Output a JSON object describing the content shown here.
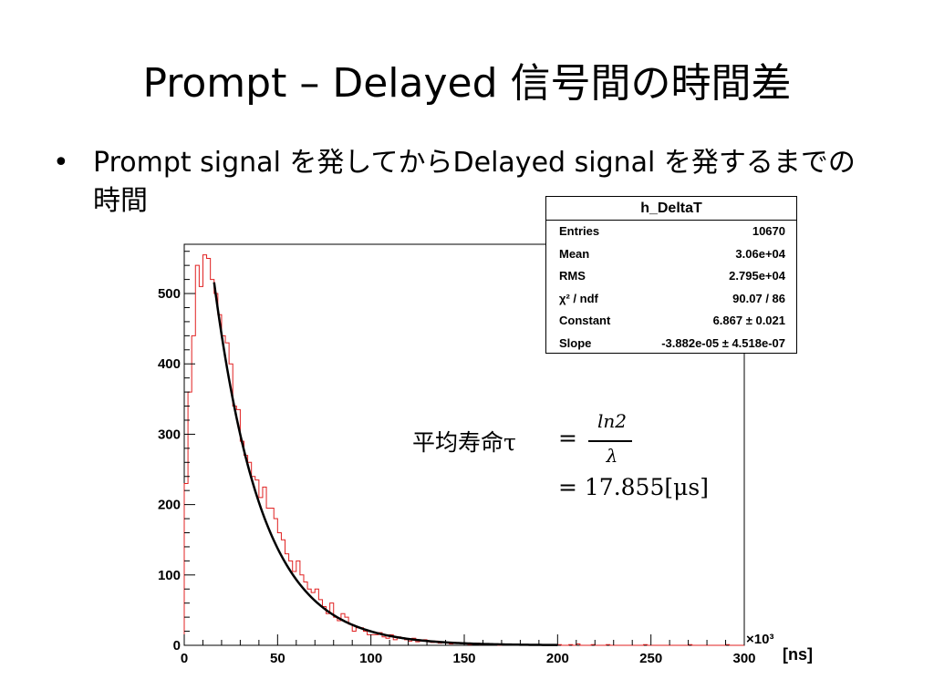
{
  "slide": {
    "title": "Prompt – Delayed 信号間の時間差",
    "bullet_marker": "•",
    "bullet_text": "Prompt signal を発してからDelayed signal を発するまでの時間"
  },
  "stats_box": {
    "title": "h_DeltaT",
    "rows": [
      {
        "key": "Entries",
        "value": "10670"
      },
      {
        "key": "Mean",
        "value": "3.06e+04"
      },
      {
        "key": "RMS",
        "value": "2.795e+04"
      },
      {
        "key": "χ² / ndf",
        "value": "90.07 / 86"
      },
      {
        "key": "Constant",
        "value": "6.867 ± 0.021"
      },
      {
        "key": "Slope",
        "value": "-3.882e-05 ± 4.518e-07"
      }
    ]
  },
  "formula": {
    "lhs": "平均寿命τ",
    "eq1": "=",
    "numerator": "ln2",
    "denominator": "λ",
    "eq2": "= 17.855[μs]"
  },
  "chart_data": {
    "type": "histogram",
    "xlim": [
      0,
      300
    ],
    "ylim": [
      0,
      570
    ],
    "x_multiplier": "×10³",
    "x_unit": "[ns]",
    "x_ticks": [
      0,
      50,
      100,
      150,
      200,
      250,
      300
    ],
    "y_ticks": [
      0,
      100,
      200,
      300,
      400,
      500
    ],
    "bin_width": 2,
    "series": [
      {
        "color": "#e02020",
        "x": [
          0,
          2,
          4,
          6,
          8,
          10,
          12,
          14,
          16,
          18,
          20,
          22,
          24,
          26,
          28,
          30,
          32,
          34,
          36,
          38,
          40,
          42,
          44,
          46,
          48,
          50,
          52,
          54,
          56,
          58,
          60,
          62,
          64,
          66,
          68,
          70,
          72,
          74,
          76,
          78,
          80,
          82,
          84,
          86,
          88,
          90,
          92,
          94,
          96,
          98,
          100,
          102,
          104,
          106,
          108,
          110,
          112,
          114,
          116,
          118,
          120,
          122,
          124,
          126,
          128,
          130,
          132,
          134,
          136,
          138,
          140,
          142,
          144,
          146,
          148,
          150,
          152,
          154,
          156,
          158,
          160,
          162,
          164,
          166,
          168,
          170,
          172,
          174,
          176,
          178,
          180,
          182,
          184,
          186,
          188,
          190,
          192,
          194,
          196,
          198,
          200,
          202,
          204,
          206,
          208,
          210,
          212,
          214,
          216,
          218,
          220,
          222,
          224,
          226,
          228,
          230,
          232,
          234,
          236,
          238,
          240,
          242,
          244,
          246,
          248,
          250,
          252,
          254,
          256,
          258,
          260,
          262,
          264,
          266,
          268,
          270,
          272,
          274,
          276,
          278,
          280,
          282,
          284,
          286,
          288,
          290,
          292,
          294,
          296,
          298
        ],
        "values": [
          230,
          360,
          440,
          540,
          510,
          555,
          550,
          520,
          500,
          470,
          440,
          430,
          400,
          340,
          335,
          290,
          270,
          260,
          240,
          235,
          210,
          225,
          195,
          195,
          180,
          160,
          150,
          130,
          120,
          105,
          120,
          100,
          90,
          80,
          75,
          80,
          65,
          55,
          45,
          60,
          40,
          35,
          45,
          40,
          30,
          20,
          25,
          25,
          20,
          15,
          15,
          15,
          18,
          12,
          10,
          15,
          8,
          12,
          10,
          8,
          6,
          10,
          5,
          6,
          8,
          5,
          4,
          6,
          3,
          4,
          3,
          2,
          4,
          3,
          2,
          2,
          1,
          2,
          3,
          1,
          1,
          2,
          1,
          1,
          0,
          1,
          1,
          2,
          1,
          0,
          1,
          0,
          1,
          1,
          0,
          0,
          1,
          0,
          0,
          1,
          1,
          0,
          0,
          1,
          0,
          2,
          0,
          0,
          0,
          1,
          0,
          0,
          0,
          1,
          0,
          0,
          0,
          0,
          0,
          0,
          0,
          0,
          0,
          1,
          0,
          0,
          0,
          0,
          0,
          0,
          0,
          0,
          0,
          0,
          0,
          1,
          0,
          0,
          0,
          0,
          0,
          0,
          0,
          0,
          0,
          1,
          0,
          0,
          0,
          0
        ]
      }
    ],
    "fit": {
      "color": "#000000",
      "constant": 6.867,
      "slope": -3.882e-05,
      "x_range": [
        16,
        200
      ]
    }
  }
}
